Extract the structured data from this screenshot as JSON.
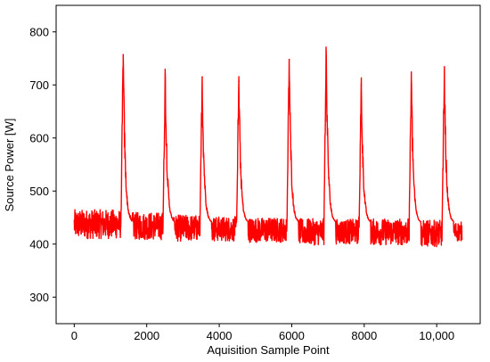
{
  "chart_data": {
    "type": "line",
    "title": "",
    "xlabel": "Aquisition Sample Point",
    "ylabel": "Source Power [W]",
    "xlim": [
      -500,
      11200
    ],
    "ylim": [
      250,
      850
    ],
    "x_ticks": [
      0,
      2000,
      4000,
      6000,
      8000,
      10000
    ],
    "x_tick_labels": [
      "0",
      "2000",
      "4000",
      "6000",
      "8000",
      "10,000"
    ],
    "y_ticks": [
      300,
      400,
      500,
      600,
      700,
      800
    ],
    "y_tick_labels": [
      "300",
      "400",
      "500",
      "600",
      "700",
      "800"
    ],
    "grid": false,
    "legend": "none",
    "series": [
      {
        "color": "#ff0000",
        "x_range": [
          0,
          10700
        ],
        "baseline_segments": [
          {
            "x": [
              0,
              1300
            ],
            "low": 410,
            "high": 465
          },
          {
            "x": [
              1600,
              2450
            ],
            "low": 408,
            "high": 460
          },
          {
            "x": [
              2650,
              3500
            ],
            "low": 405,
            "high": 455
          },
          {
            "x": [
              3700,
              4500
            ],
            "low": 405,
            "high": 452
          },
          {
            "x": [
              4700,
              5850
            ],
            "low": 403,
            "high": 450
          },
          {
            "x": [
              6050,
              6900
            ],
            "low": 398,
            "high": 448
          },
          {
            "x": [
              7050,
              7850
            ],
            "low": 400,
            "high": 447
          },
          {
            "x": [
              8000,
              9250
            ],
            "low": 398,
            "high": 448
          },
          {
            "x": [
              9450,
              10150
            ],
            "low": 395,
            "high": 445
          },
          {
            "x": [
              10350,
              10700
            ],
            "low": 405,
            "high": 442
          }
        ],
        "peaks": [
          {
            "x": 1350,
            "value": 757
          },
          {
            "x": 2510,
            "value": 720
          },
          {
            "x": 3530,
            "value": 715
          },
          {
            "x": 4540,
            "value": 707
          },
          {
            "x": 5930,
            "value": 748
          },
          {
            "x": 6950,
            "value": 763
          },
          {
            "x": 7920,
            "value": 700
          },
          {
            "x": 9300,
            "value": 713
          },
          {
            "x": 10210,
            "value": 720
          }
        ]
      }
    ]
  }
}
